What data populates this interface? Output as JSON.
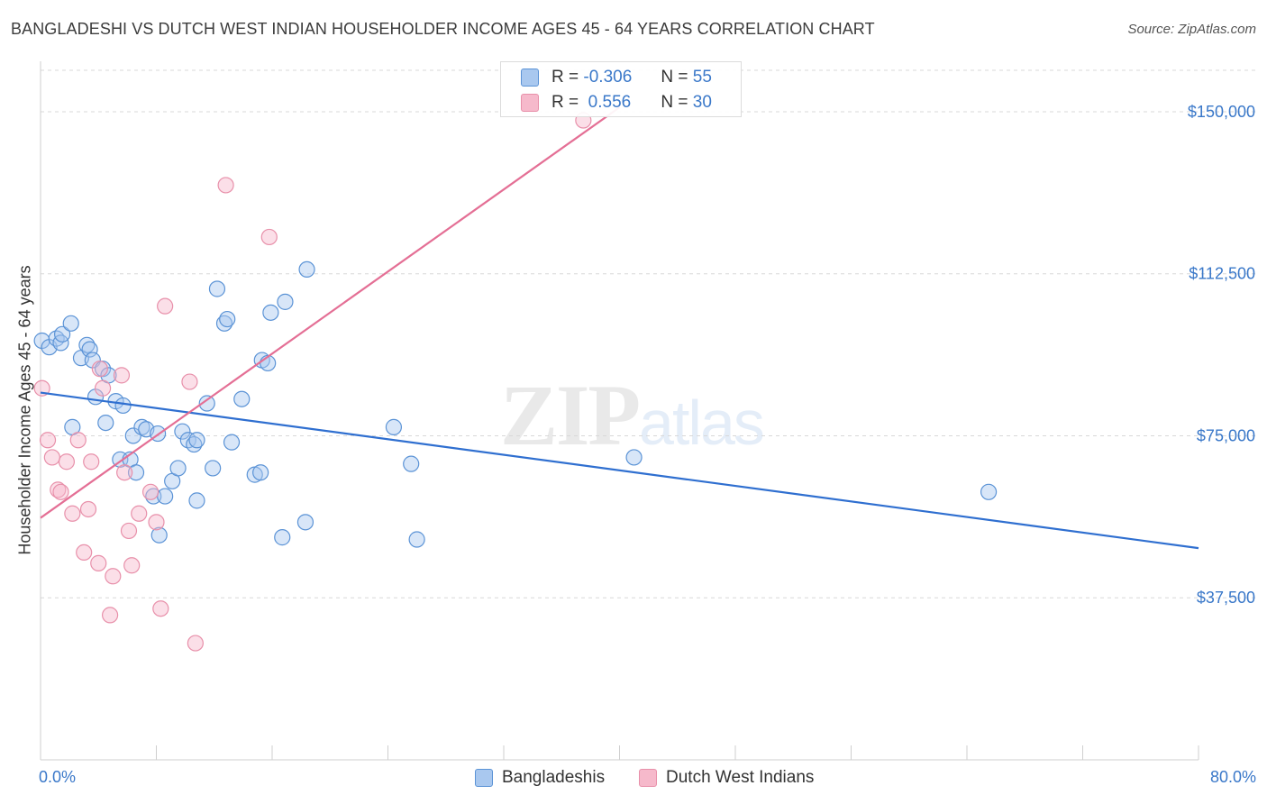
{
  "title": "BANGLADESHI VS DUTCH WEST INDIAN HOUSEHOLDER INCOME AGES 45 - 64 YEARS CORRELATION CHART",
  "source": "Source: ZipAtlas.com",
  "watermark": {
    "part1": "ZIP",
    "part2": "atlas"
  },
  "colors": {
    "bangladeshi_fill": "#a9c8ef",
    "bangladeshi_stroke": "#5b93d6",
    "bangladeshi_line": "#2f6fd0",
    "dutch_fill": "#f6b9cb",
    "dutch_stroke": "#e890aa",
    "dutch_line": "#e46f95",
    "axis_label": "#3a78c9",
    "grid": "#d8d8d8"
  },
  "legend_stats": [
    {
      "r_label": "R = ",
      "r_value": "-0.306",
      "n_label": "N = ",
      "n_value": "55"
    },
    {
      "r_label": "R = ",
      "r_value": " 0.556",
      "n_label": "N = ",
      "n_value": "30"
    }
  ],
  "chart_data": {
    "type": "scatter",
    "title": "BANGLADESHI VS DUTCH WEST INDIAN HOUSEHOLDER INCOME AGES 45 - 64 YEARS CORRELATION CHART",
    "xlabel": "",
    "ylabel": "Householder Income Ages 45 - 64 years",
    "xlim": [
      0,
      80
    ],
    "ylim": [
      0,
      160000
    ],
    "x_tick_labels": [
      "0.0%",
      "80.0%"
    ],
    "y_ticks": [
      37500,
      75000,
      112500,
      150000
    ],
    "y_tick_labels": [
      "$37,500",
      "$75,000",
      "$112,500",
      "$150,000"
    ],
    "grid": "horizontal dashed",
    "legend_position": "bottom-center",
    "series": [
      {
        "name": "Bangladeshis",
        "trend": {
          "r": -0.306,
          "n": 55,
          "x": [
            0,
            80
          ],
          "y": [
            85000,
            49000
          ]
        },
        "points": [
          [
            0.1,
            97000
          ],
          [
            0.6,
            95500
          ],
          [
            1.1,
            97500
          ],
          [
            1.4,
            96500
          ],
          [
            1.5,
            98500
          ],
          [
            2.1,
            101000
          ],
          [
            2.8,
            93000
          ],
          [
            3.2,
            96000
          ],
          [
            3.4,
            95000
          ],
          [
            3.6,
            92500
          ],
          [
            4.3,
            90500
          ],
          [
            4.7,
            89000
          ],
          [
            3.8,
            84000
          ],
          [
            5.2,
            83000
          ],
          [
            2.2,
            77000
          ],
          [
            4.5,
            78000
          ],
          [
            5.7,
            82000
          ],
          [
            6.4,
            75000
          ],
          [
            7.0,
            77000
          ],
          [
            7.3,
            76500
          ],
          [
            8.1,
            75500
          ],
          [
            5.5,
            69500
          ],
          [
            6.2,
            69500
          ],
          [
            6.6,
            66500
          ],
          [
            7.8,
            61000
          ],
          [
            8.2,
            52000
          ],
          [
            8.6,
            61000
          ],
          [
            9.1,
            64500
          ],
          [
            9.5,
            67500
          ],
          [
            9.8,
            76000
          ],
          [
            10.2,
            74000
          ],
          [
            10.6,
            73000
          ],
          [
            10.8,
            74000
          ],
          [
            10.8,
            60000
          ],
          [
            11.5,
            82500
          ],
          [
            11.9,
            67500
          ],
          [
            12.2,
            109000
          ],
          [
            12.7,
            101000
          ],
          [
            12.9,
            102000
          ],
          [
            13.2,
            73500
          ],
          [
            13.9,
            83500
          ],
          [
            14.8,
            66000
          ],
          [
            15.2,
            66500
          ],
          [
            15.3,
            92500
          ],
          [
            15.7,
            91800
          ],
          [
            15.9,
            103500
          ],
          [
            16.7,
            51500
          ],
          [
            16.9,
            106000
          ],
          [
            18.3,
            55000
          ],
          [
            18.4,
            113500
          ],
          [
            24.4,
            77000
          ],
          [
            25.6,
            68500
          ],
          [
            26.0,
            51000
          ],
          [
            41.0,
            70000
          ],
          [
            65.5,
            62000
          ]
        ]
      },
      {
        "name": "Dutch West Indians",
        "trend": {
          "r": 0.556,
          "n": 30,
          "x": [
            0,
            40
          ],
          "y": [
            56000,
            151000
          ]
        },
        "points": [
          [
            0.1,
            86000
          ],
          [
            0.5,
            74000
          ],
          [
            0.8,
            70000
          ],
          [
            1.2,
            62500
          ],
          [
            1.4,
            62000
          ],
          [
            1.8,
            69000
          ],
          [
            2.2,
            57000
          ],
          [
            2.6,
            74000
          ],
          [
            3.0,
            48000
          ],
          [
            3.3,
            58000
          ],
          [
            3.5,
            69000
          ],
          [
            4.0,
            45500
          ],
          [
            4.1,
            90500
          ],
          [
            4.3,
            86000
          ],
          [
            4.8,
            33500
          ],
          [
            5.0,
            42500
          ],
          [
            5.6,
            89000
          ],
          [
            5.8,
            66500
          ],
          [
            6.1,
            53000
          ],
          [
            6.3,
            45000
          ],
          [
            6.8,
            57000
          ],
          [
            7.6,
            62000
          ],
          [
            8.0,
            55000
          ],
          [
            8.3,
            35000
          ],
          [
            8.6,
            105000
          ],
          [
            10.3,
            87500
          ],
          [
            10.7,
            27000
          ],
          [
            12.8,
            133000
          ],
          [
            15.8,
            121000
          ],
          [
            37.5,
            148000
          ]
        ]
      }
    ]
  }
}
